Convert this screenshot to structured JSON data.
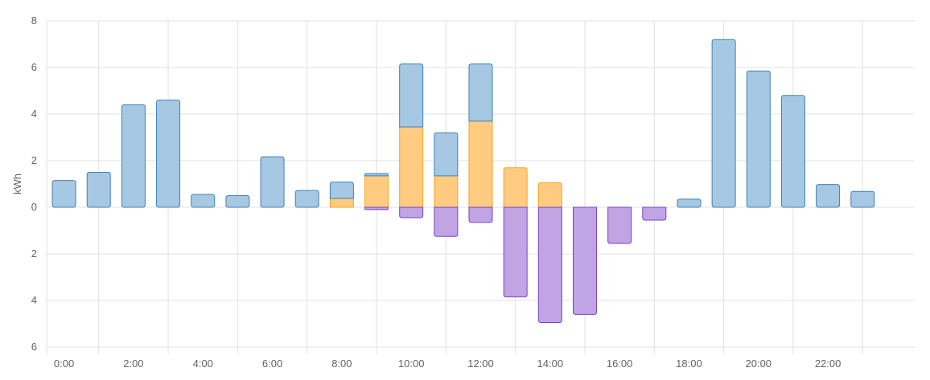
{
  "chart_data": {
    "type": "bar",
    "stacked": true,
    "ylabel": "kWh",
    "ylim": [
      -6,
      8
    ],
    "y_ticks": [
      {
        "value": 8,
        "label": "8"
      },
      {
        "value": 6,
        "label": "6"
      },
      {
        "value": 4,
        "label": "4"
      },
      {
        "value": 2,
        "label": "2"
      },
      {
        "value": 0,
        "label": "0"
      },
      {
        "value": -2,
        "label": "2"
      },
      {
        "value": -4,
        "label": "4"
      },
      {
        "value": -6,
        "label": "6"
      }
    ],
    "x_ticks": [
      "0:00",
      "2:00",
      "4:00",
      "6:00",
      "8:00",
      "10:00",
      "12:00",
      "14:00",
      "16:00",
      "18:00",
      "20:00",
      "22:00"
    ],
    "grid": true,
    "hours": 24,
    "colors": {
      "grid_fill": "#a6c8e3",
      "grid_stroke": "#3e82b5",
      "solar_fill": "#ffcb80",
      "solar_stroke": "#f5a623",
      "return_fill": "#c0a4e4",
      "return_stroke": "#7b44bf",
      "gridline": "#e0e0e0"
    },
    "series": [
      {
        "key": "grid",
        "values": [
          1.15,
          1.5,
          4.4,
          4.6,
          0.55,
          0.5,
          2.17,
          0.72,
          0.7,
          0.1,
          2.7,
          1.85,
          2.45,
          0,
          0,
          0,
          0,
          0,
          0.35,
          7.2,
          5.85,
          4.8,
          0.98,
          0.68
        ]
      },
      {
        "key": "solar",
        "values": [
          0,
          0,
          0,
          0,
          0,
          0,
          0,
          0,
          0.38,
          1.35,
          3.45,
          1.35,
          3.7,
          1.7,
          1.05,
          0,
          0,
          0,
          0,
          0,
          0,
          0,
          0,
          0
        ]
      },
      {
        "key": "return",
        "values": [
          0,
          0,
          0,
          0,
          0,
          0,
          0,
          0,
          0,
          -0.1,
          -0.45,
          -1.25,
          -0.65,
          -3.85,
          -4.95,
          -4.6,
          -1.55,
          -0.55,
          0,
          0,
          0,
          0,
          0,
          0
        ]
      }
    ]
  }
}
